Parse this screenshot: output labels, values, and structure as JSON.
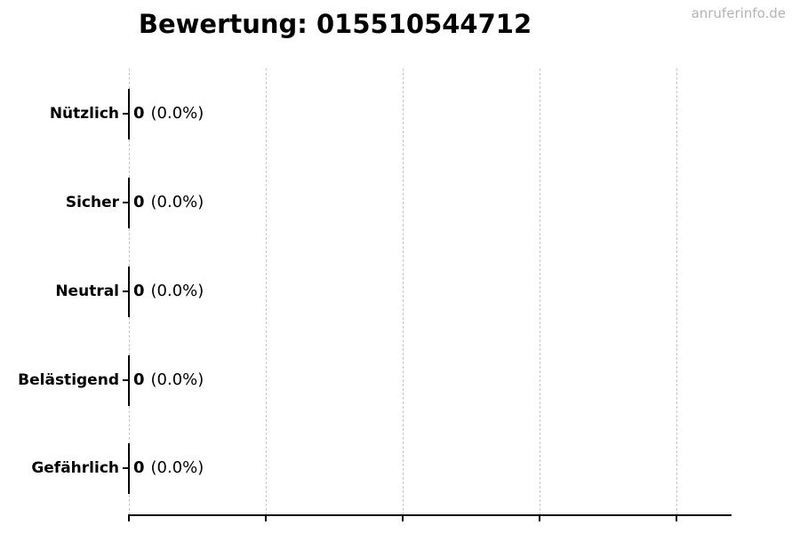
{
  "header": {
    "title": "Bewertung: 015510544712",
    "watermark": "anruferinfo.de"
  },
  "chart_data": {
    "type": "bar",
    "orientation": "horizontal",
    "title": "Bewertung: 015510544712",
    "categories": [
      "Nützlich",
      "Sicher",
      "Neutral",
      "Belästigend",
      "Gefährlich"
    ],
    "values": [
      0,
      0,
      0,
      0,
      0
    ],
    "percentages": [
      0.0,
      0.0,
      0.0,
      0.0,
      0.0
    ],
    "bar_labels": [
      "0 (0.0%)",
      "0 (0.0%)",
      "0 (0.0%)",
      "0 (0.0%)",
      "0 (0.0%)"
    ],
    "xlabel": "",
    "ylabel": "",
    "x_tick_labels": [],
    "x_gridline_count": 5,
    "grid": "vertical-dashed",
    "legend": "none"
  },
  "rows": [
    {
      "label": "Nützlich",
      "count": "0",
      "percent": "(0.0%)"
    },
    {
      "label": "Sicher",
      "count": "0",
      "percent": "(0.0%)"
    },
    {
      "label": "Neutral",
      "count": "0",
      "percent": "(0.0%)"
    },
    {
      "label": "Belästigend",
      "count": "0",
      "percent": "(0.0%)"
    },
    {
      "label": "Gefährlich",
      "count": "0",
      "percent": "(0.0%)"
    }
  ],
  "colors": {
    "text": "#000000",
    "bar_edge": "#000000",
    "axis": "#000000",
    "gridline": "#c6c6c6",
    "watermark": "#b3b3b3",
    "background": "#ffffff"
  }
}
